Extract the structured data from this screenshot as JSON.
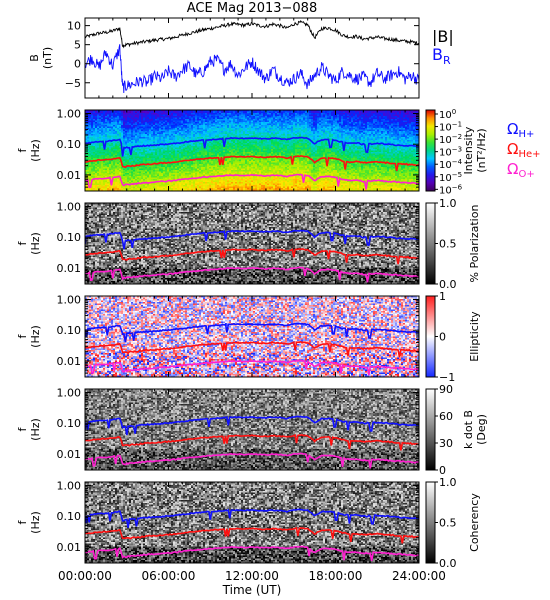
{
  "chart_data": {
    "type": "spectrogram",
    "title": "ACE Mag 2013−088",
    "xlabel": "Time (UT)",
    "xticks": [
      "00:00:00",
      "06:00:00",
      "12:00:00",
      "18:00:00",
      "24:00:00"
    ],
    "xrange_hours": [
      0,
      24
    ],
    "panels": [
      {
        "type": "line",
        "ylabel_lines": [
          "B",
          "(nT)"
        ],
        "ylim": [
          -9,
          12
        ],
        "yticks": [
          10,
          5,
          0,
          -5
        ],
        "yticklabels": [
          "10",
          "5",
          "0",
          "−5"
        ],
        "series": [
          {
            "name": "|B|",
            "color": "#000000",
            "x": [
              0,
              0.5,
              1,
              1.5,
              2,
              2.5,
              2.7,
              3,
              3.5,
              4,
              4.5,
              5,
              5.5,
              6,
              6.5,
              7,
              7.5,
              8,
              8.5,
              9,
              9.5,
              10,
              10.5,
              11,
              11.5,
              12,
              12.5,
              13,
              13.5,
              14,
              14.5,
              15,
              15.5,
              16,
              16.5,
              17,
              17.5,
              18,
              18.5,
              19,
              19.5,
              20,
              20.5,
              21,
              21.5,
              22,
              22.5,
              23,
              23.5,
              24
            ],
            "y": [
              7,
              7.5,
              8,
              8.2,
              8.6,
              9.3,
              4.8,
              5,
              5.3,
              5.6,
              5.9,
              6.2,
              6.4,
              6.6,
              7,
              7.5,
              8,
              8.4,
              8.9,
              9.2,
              9.6,
              10,
              10.4,
              10.3,
              10.1,
              10.5,
              10,
              9.8,
              10.4,
              10,
              9.3,
              10.4,
              10.8,
              10.2,
              6.8,
              9.2,
              9.4,
              8.8,
              7.5,
              7,
              7.2,
              6.5,
              6.7,
              7,
              6.6,
              6.4,
              6.1,
              5.9,
              5.7,
              5.4
            ]
          },
          {
            "name": "B_R",
            "color": "#1010ff",
            "x": [
              0,
              0.5,
              1,
              1.5,
              2,
              2.5,
              2.7,
              3,
              3.5,
              4,
              4.5,
              5,
              5.5,
              6,
              6.5,
              7,
              7.5,
              8,
              8.5,
              9,
              9.5,
              10,
              10.5,
              11,
              11.5,
              12,
              12.5,
              13,
              13.5,
              14,
              14.5,
              15,
              15.5,
              16,
              16.5,
              17,
              17.5,
              18,
              18.5,
              19,
              19.5,
              20,
              20.5,
              21,
              21.5,
              22,
              22.5,
              23,
              23.5,
              24
            ],
            "y": [
              0,
              1.5,
              -1,
              3,
              -0.5,
              4.2,
              -6.3,
              -5.8,
              -5.2,
              -4.5,
              -5,
              -3.2,
              -4,
              -2,
              -3.5,
              -1.5,
              -0.5,
              -3,
              -2,
              0.5,
              1,
              -1.5,
              0,
              -3,
              -1,
              0.5,
              -2,
              -4,
              -1.5,
              -3.5,
              -5,
              -4,
              -2.5,
              -5.5,
              -3,
              -1,
              -3,
              -4.5,
              -2,
              -3,
              -4,
              -3.5,
              -5,
              -2.5,
              -4,
              -3,
              -2,
              -4,
              -3,
              -4.5
            ]
          }
        ],
        "legend": [
          {
            "text": "|B|",
            "color": "#000000"
          },
          {
            "text": "B",
            "sub": "R",
            "color": "#1010ff"
          }
        ]
      },
      {
        "type": "heatmap",
        "quantity": "Intensity",
        "ylabel_lines": [
          "f",
          "(Hz)"
        ],
        "ylim_hz": [
          0.003,
          1.3
        ],
        "yscale": "log",
        "yticklabels": [
          "1.00",
          "0.10",
          "0.01"
        ],
        "colorbar": {
          "label_lines": [
            "Intensity",
            "(nT²/Hz)"
          ],
          "colormap": "rainbow",
          "scale": "log",
          "ticks": [
            {
              "base": "10",
              "exp": "0"
            },
            {
              "base": "10",
              "exp": "−1"
            },
            {
              "base": "10",
              "exp": "−2"
            },
            {
              "base": "10",
              "exp": "−3"
            },
            {
              "base": "10",
              "exp": "−4"
            },
            {
              "base": "10",
              "exp": "−5"
            },
            {
              "base": "10",
              "exp": "−6"
            }
          ]
        },
        "legend": [
          {
            "text": "Ω",
            "sub": "H+",
            "color": "#1010ff"
          },
          {
            "text": "Ω",
            "sub": "He+",
            "color": "#ff1010"
          },
          {
            "text": "Ω",
            "sub": "O+",
            "color": "#ff20d0"
          }
        ]
      },
      {
        "type": "heatmap",
        "quantity": "% Polarization",
        "ylabel_lines": [
          "f",
          "(Hz)"
        ],
        "ylim_hz": [
          0.003,
          1.3
        ],
        "yscale": "log",
        "yticklabels": [
          "1.00",
          "0.10",
          "0.01"
        ],
        "colorbar": {
          "label_lines": [
            "% Polarization"
          ],
          "colormap": "gray",
          "ticks": [
            "1.0",
            "0.5",
            "0.0"
          ]
        }
      },
      {
        "type": "heatmap",
        "quantity": "Ellipticity",
        "ylabel_lines": [
          "f",
          "(Hz)"
        ],
        "ylim_hz": [
          0.003,
          1.3
        ],
        "yscale": "log",
        "yticklabels": [
          "1.00",
          "0.10",
          "0.01"
        ],
        "colorbar": {
          "label_lines": [
            "Ellipticity"
          ],
          "colormap": "blue-white-red",
          "ticks": [
            "1",
            "0",
            "−1"
          ]
        }
      },
      {
        "type": "heatmap",
        "quantity": "k dot B",
        "ylabel_lines": [
          "f",
          "(Hz)"
        ],
        "ylim_hz": [
          0.003,
          1.3
        ],
        "yscale": "log",
        "yticklabels": [
          "1.00",
          "0.10",
          "0.01"
        ],
        "colorbar": {
          "label_lines": [
            "k dot B",
            "(Deg)"
          ],
          "colormap": "gray",
          "ticks": [
            "90",
            "60",
            "30",
            "0"
          ]
        }
      },
      {
        "type": "heatmap",
        "quantity": "Coherency",
        "ylabel_lines": [
          "f",
          "(Hz)"
        ],
        "ylim_hz": [
          0.003,
          1.3
        ],
        "yscale": "log",
        "yticklabels": [
          "1.00",
          "0.10",
          "0.01"
        ],
        "colorbar": {
          "label_lines": [
            "Coherency"
          ],
          "colormap": "gray",
          "ticks": [
            "1.0",
            "0.5",
            "0.0"
          ]
        }
      }
    ],
    "gyrofrequency_lines": [
      {
        "name": "H+",
        "color": "#1010ff",
        "hz_per_nT": 0.01525
      },
      {
        "name": "He+",
        "color": "#ff1010",
        "hz_per_nT": 0.00381
      },
      {
        "name": "O+",
        "color": "#ff20d0",
        "hz_per_nT": 0.000953
      }
    ]
  }
}
